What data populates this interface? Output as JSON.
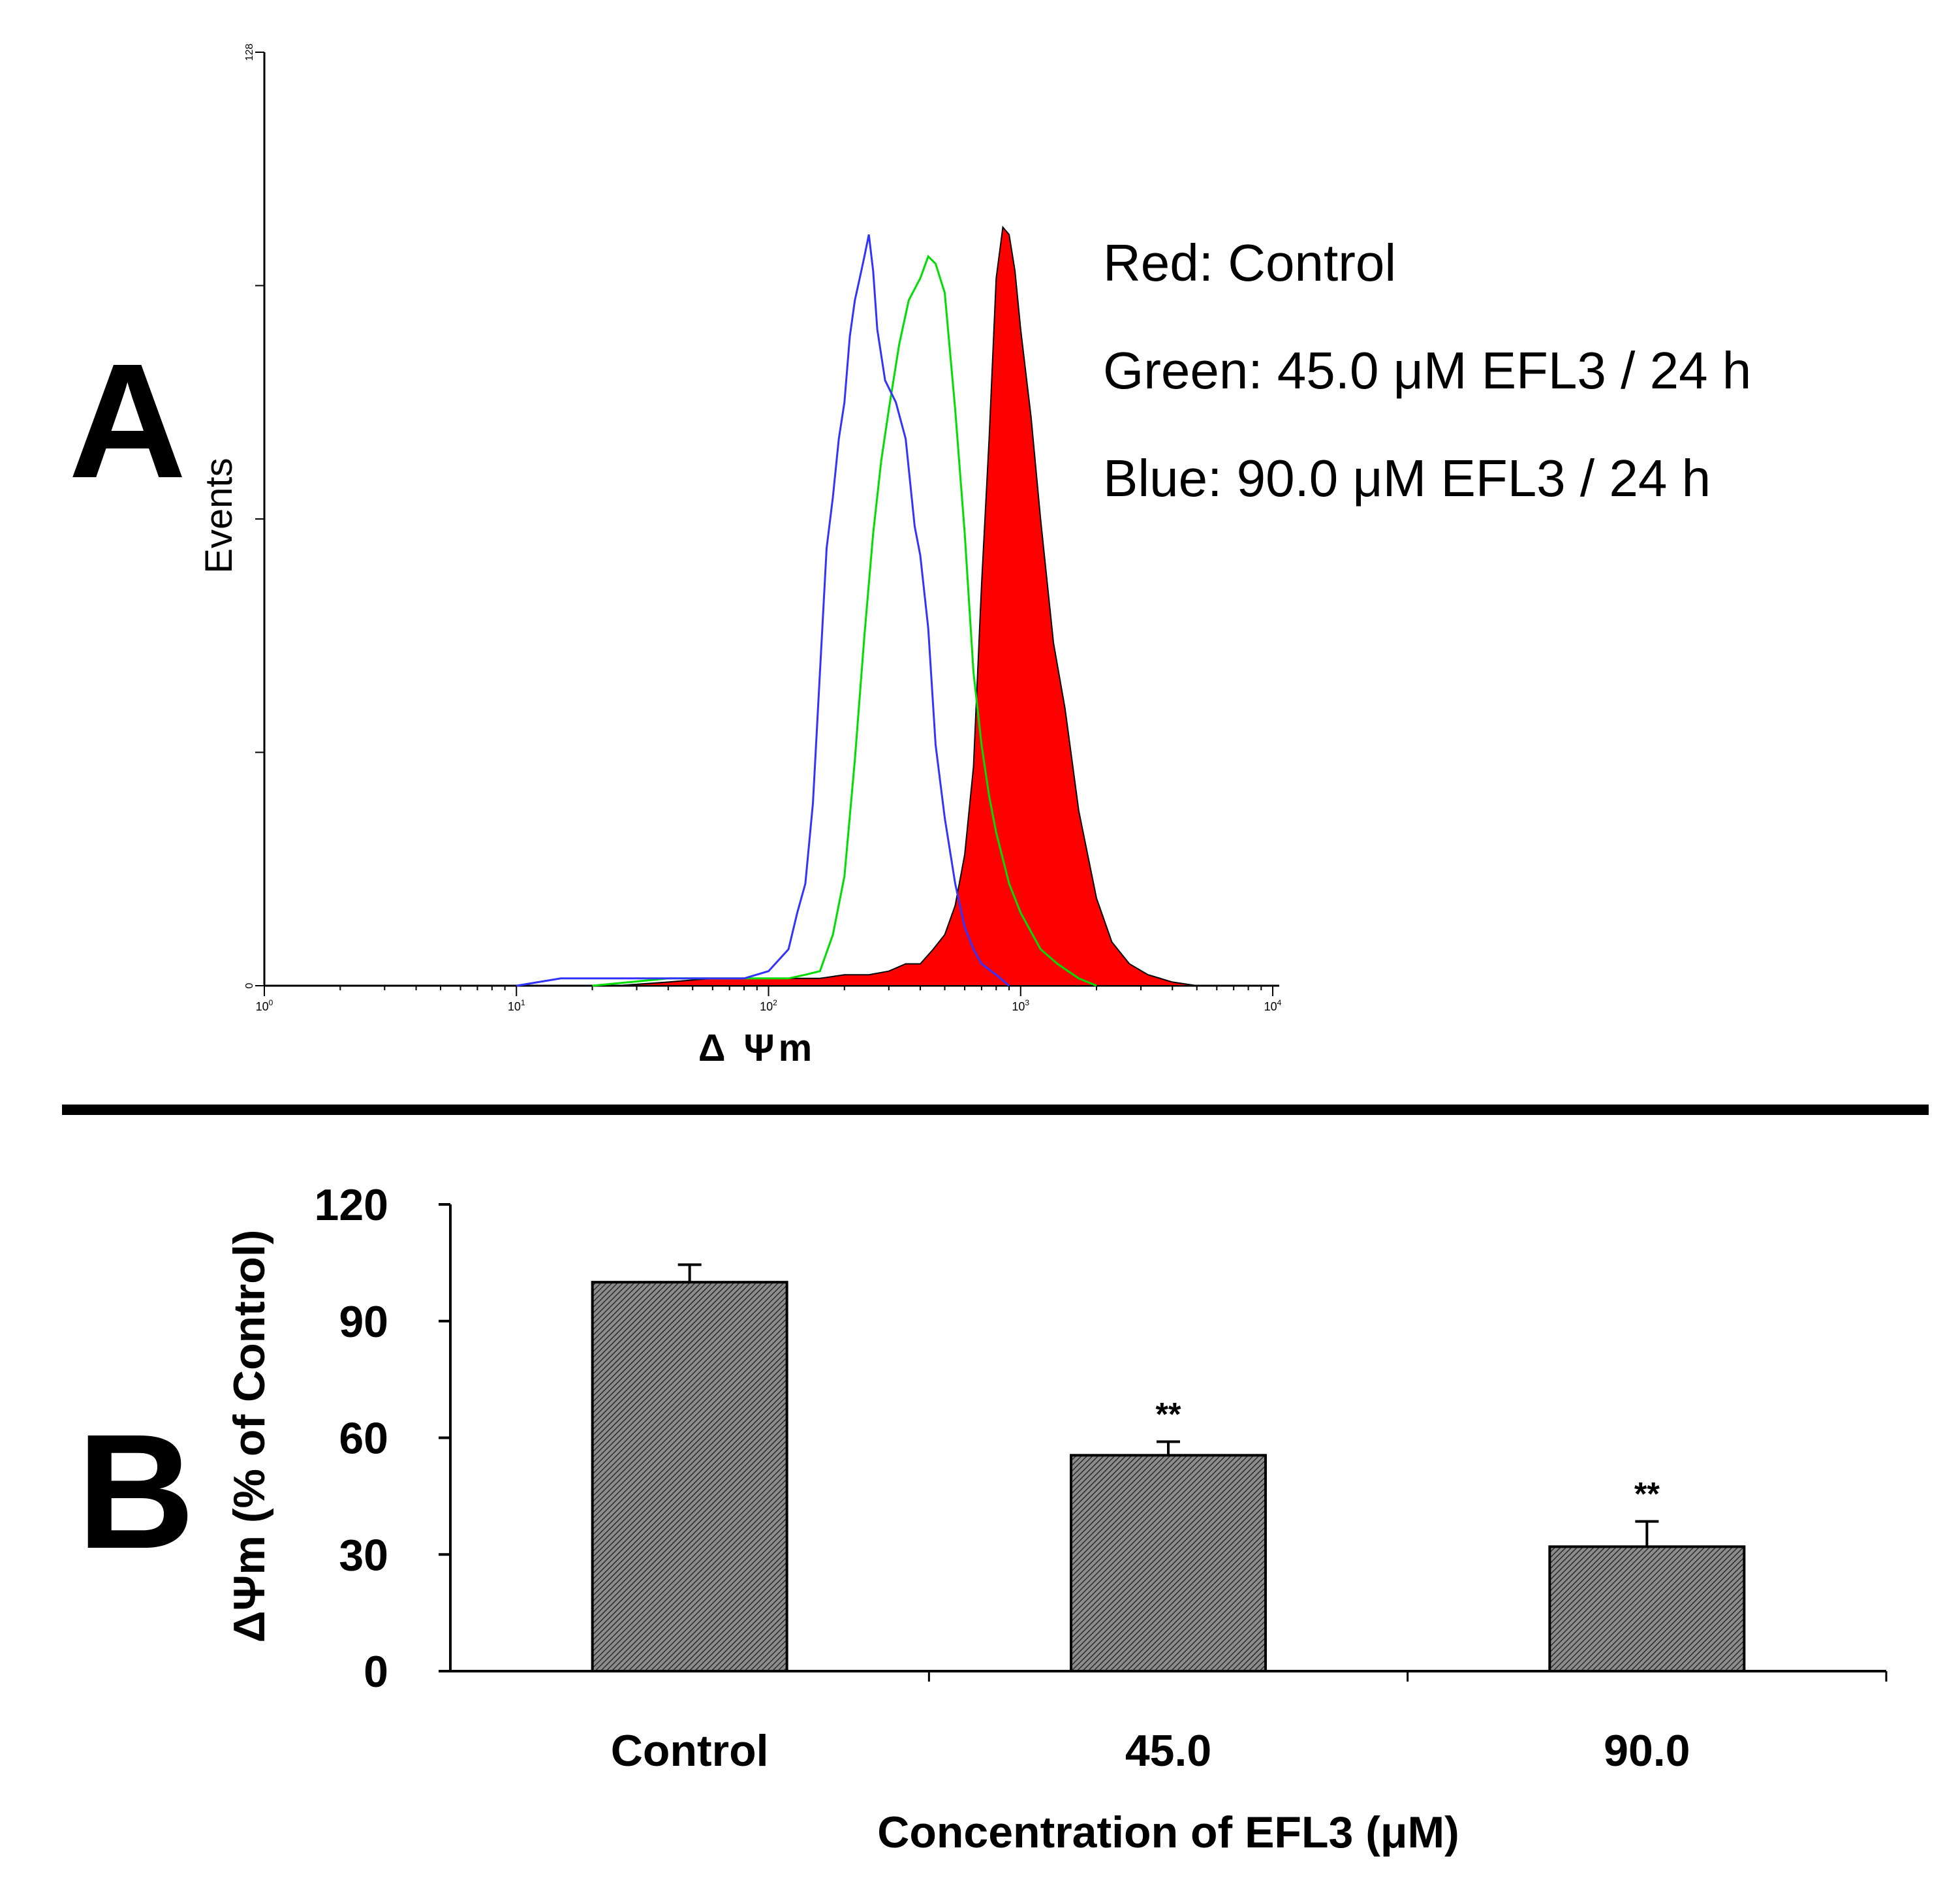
{
  "panels": {
    "a_label": "A",
    "b_label": "B"
  },
  "chart_data": [
    {
      "type": "histogram",
      "panel": "A",
      "xlabel": "Δ Ψm",
      "ylabel": "Events",
      "x_scale": "log",
      "xlim": [
        1,
        10000
      ],
      "ylim": [
        0,
        128
      ],
      "x_ticks": [
        {
          "value": 1,
          "base": "10",
          "exp": "0"
        },
        {
          "value": 10,
          "base": "10",
          "exp": "1"
        },
        {
          "value": 100,
          "base": "10",
          "exp": "2"
        },
        {
          "value": 1000,
          "base": "10",
          "exp": "3"
        },
        {
          "value": 10000,
          "base": "10",
          "exp": "4"
        }
      ],
      "y_ticks": [
        {
          "value": 0,
          "label": "0"
        },
        {
          "value": 32,
          "label": ""
        },
        {
          "value": 64,
          "label": ""
        },
        {
          "value": 96,
          "label": ""
        },
        {
          "value": 128,
          "label": "128"
        }
      ],
      "annotations": [
        "Red: Control",
        "Green: 45.0 μM EFL3 / 24 h",
        "Blue: 90.0 μM EFL3 / 24 h"
      ],
      "series": [
        {
          "name": "Control",
          "color": "#ff0000",
          "outline": "#000000",
          "filled": true,
          "x": [
            25,
            40,
            60,
            80,
            100,
            130,
            160,
            200,
            250,
            300,
            350,
            400,
            450,
            500,
            550,
            600,
            650,
            700,
            750,
            800,
            850,
            900,
            950,
            1000,
            1100,
            1200,
            1350,
            1500,
            1700,
            2000,
            2300,
            2700,
            3200,
            4000,
            5000
          ],
          "y": [
            0,
            0.5,
            1,
            1,
            1,
            1,
            1,
            1.5,
            1.5,
            2,
            3,
            3,
            5,
            7,
            11,
            18,
            30,
            55,
            75,
            97,
            104,
            103,
            98,
            90,
            78,
            64,
            47,
            38,
            24,
            12,
            6,
            3,
            1.5,
            0.5,
            0
          ]
        },
        {
          "name": "45.0 μM EFL3 / 24 h",
          "color": "#00dd00",
          "filled": false,
          "x": [
            20,
            40,
            60,
            80,
            100,
            120,
            140,
            160,
            180,
            200,
            220,
            240,
            260,
            280,
            300,
            330,
            360,
            400,
            430,
            460,
            500,
            550,
            600,
            650,
            700,
            750,
            800,
            900,
            1000,
            1200,
            1400,
            1700,
            2000
          ],
          "y": [
            0,
            1,
            1,
            1,
            1,
            1,
            1.5,
            2,
            7,
            15,
            31,
            48,
            62,
            72,
            79,
            88,
            94,
            97,
            100,
            99,
            95,
            79,
            62,
            43,
            33,
            26,
            21,
            14,
            10,
            5,
            3,
            1,
            0
          ]
        },
        {
          "name": "90.0 μM EFL3 / 24 h",
          "color": "#3333ff",
          "filled": false,
          "x": [
            10,
            15,
            20,
            30,
            40,
            60,
            80,
            100,
            120,
            130,
            140,
            150,
            160,
            170,
            180,
            190,
            200,
            210,
            220,
            230,
            240,
            250,
            260,
            270,
            290,
            320,
            350,
            380,
            400,
            430,
            460,
            500,
            550,
            600,
            650,
            700,
            800,
            900
          ],
          "y": [
            0,
            1,
            1,
            1,
            1,
            1,
            1,
            2,
            5,
            10,
            14,
            25,
            43,
            60,
            67,
            75,
            80,
            89,
            94,
            97,
            100,
            103,
            98,
            90,
            83,
            80,
            75,
            63,
            59,
            49,
            33,
            23,
            14,
            8,
            5,
            3,
            1.5,
            0
          ]
        }
      ]
    },
    {
      "type": "bar",
      "panel": "B",
      "categories": [
        "Control",
        "45.0",
        "90.0"
      ],
      "values": [
        100,
        55.5,
        32
      ],
      "errors": [
        4.5,
        3.5,
        6.5
      ],
      "significance": [
        "",
        "**",
        "**"
      ],
      "xlabel": "Concentration of EFL3 (μM)",
      "ylabel": "ΔΨm (% of Control)",
      "ylim": [
        0,
        120
      ],
      "y_ticks": [
        0,
        30,
        60,
        90,
        120
      ],
      "bar_fill": "#555555"
    }
  ]
}
